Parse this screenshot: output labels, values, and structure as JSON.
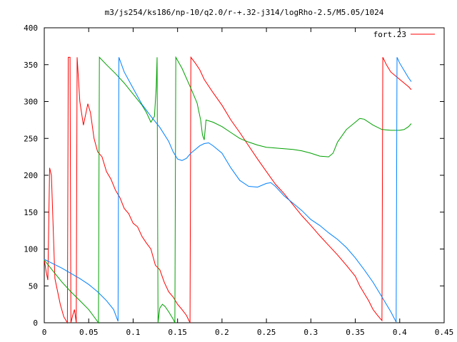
{
  "chart_data": {
    "type": "line",
    "title": "m3/js254/ks186/np-10/q2.0/r-+.32-j314/logRho-2.5/M5.05/1024",
    "xlabel": "",
    "ylabel": "",
    "xlim": [
      0,
      0.45
    ],
    "ylim": [
      0,
      400
    ],
    "xticks": [
      "0",
      "0.05",
      "0.1",
      "0.15",
      "0.2",
      "0.25",
      "0.3",
      "0.35",
      "0.4",
      "0.45"
    ],
    "yticks": [
      "0",
      "50",
      "100",
      "150",
      "200",
      "250",
      "300",
      "350",
      "400"
    ],
    "grid": false,
    "legend_position": "top-right",
    "legend": {
      "label": "fort.23",
      "color": "#ff0000"
    },
    "colors": {
      "red": "#ff0000",
      "green": "#00a000",
      "blue": "#0080ff"
    },
    "series": [
      {
        "color": "#ff0000",
        "points": [
          [
            0,
            86
          ],
          [
            0.002,
            70
          ],
          [
            0.004,
            58
          ],
          [
            0.006,
            210
          ],
          [
            0.008,
            200
          ],
          [
            0.012,
            60
          ],
          [
            0.018,
            25
          ],
          [
            0.022,
            8
          ],
          [
            0.026,
            0
          ],
          [
            0.027,
            360
          ],
          [
            0.029,
            360
          ],
          [
            0.03,
            0
          ],
          [
            0.032,
            10
          ],
          [
            0.034,
            18
          ],
          [
            0.036,
            0
          ],
          [
            0.037,
            360
          ],
          [
            0.04,
            300
          ],
          [
            0.044,
            268
          ],
          [
            0.047,
            285
          ],
          [
            0.049,
            297
          ],
          [
            0.052,
            285
          ],
          [
            0.056,
            250
          ],
          [
            0.06,
            232
          ],
          [
            0.065,
            225
          ],
          [
            0.07,
            205
          ],
          [
            0.075,
            195
          ],
          [
            0.08,
            180
          ],
          [
            0.085,
            170
          ],
          [
            0.09,
            155
          ],
          [
            0.095,
            148
          ],
          [
            0.1,
            135
          ],
          [
            0.105,
            130
          ],
          [
            0.11,
            117
          ],
          [
            0.115,
            108
          ],
          [
            0.12,
            100
          ],
          [
            0.125,
            78
          ],
          [
            0.13,
            72
          ],
          [
            0.135,
            55
          ],
          [
            0.14,
            42
          ],
          [
            0.145,
            35
          ],
          [
            0.15,
            25
          ],
          [
            0.155,
            18
          ],
          [
            0.16,
            10
          ],
          [
            0.164,
            0
          ],
          [
            0.165,
            360
          ],
          [
            0.17,
            352
          ],
          [
            0.175,
            343
          ],
          [
            0.18,
            330
          ],
          [
            0.19,
            312
          ],
          [
            0.2,
            295
          ],
          [
            0.21,
            275
          ],
          [
            0.22,
            258
          ],
          [
            0.23,
            240
          ],
          [
            0.24,
            222
          ],
          [
            0.25,
            205
          ],
          [
            0.26,
            188
          ],
          [
            0.27,
            175
          ],
          [
            0.28,
            160
          ],
          [
            0.29,
            145
          ],
          [
            0.3,
            132
          ],
          [
            0.31,
            118
          ],
          [
            0.32,
            105
          ],
          [
            0.33,
            92
          ],
          [
            0.34,
            78
          ],
          [
            0.35,
            63
          ],
          [
            0.355,
            50
          ],
          [
            0.36,
            40
          ],
          [
            0.365,
            30
          ],
          [
            0.37,
            18
          ],
          [
            0.375,
            10
          ],
          [
            0.38,
            3
          ],
          [
            0.381,
            360
          ],
          [
            0.385,
            350
          ],
          [
            0.39,
            340
          ],
          [
            0.395,
            335
          ],
          [
            0.4,
            330
          ],
          [
            0.405,
            325
          ],
          [
            0.41,
            320
          ],
          [
            0.413,
            316
          ]
        ]
      },
      {
        "color": "#00a000",
        "points": [
          [
            0,
            85
          ],
          [
            0.01,
            70
          ],
          [
            0.02,
            55
          ],
          [
            0.03,
            42
          ],
          [
            0.04,
            30
          ],
          [
            0.05,
            18
          ],
          [
            0.061,
            0
          ],
          [
            0.062,
            360
          ],
          [
            0.07,
            350
          ],
          [
            0.08,
            338
          ],
          [
            0.09,
            325
          ],
          [
            0.1,
            310
          ],
          [
            0.11,
            295
          ],
          [
            0.115,
            285
          ],
          [
            0.12,
            272
          ],
          [
            0.124,
            280
          ],
          [
            0.126,
            320
          ],
          [
            0.127,
            360
          ],
          [
            0.128,
            0
          ],
          [
            0.13,
            20
          ],
          [
            0.133,
            25
          ],
          [
            0.136,
            22
          ],
          [
            0.14,
            15
          ],
          [
            0.145,
            5
          ],
          [
            0.147,
            0
          ],
          [
            0.148,
            360
          ],
          [
            0.155,
            345
          ],
          [
            0.165,
            318
          ],
          [
            0.172,
            298
          ],
          [
            0.176,
            275
          ],
          [
            0.178,
            255
          ],
          [
            0.18,
            248
          ],
          [
            0.182,
            275
          ],
          [
            0.19,
            272
          ],
          [
            0.2,
            266
          ],
          [
            0.21,
            258
          ],
          [
            0.22,
            250
          ],
          [
            0.23,
            245
          ],
          [
            0.24,
            241
          ],
          [
            0.25,
            238
          ],
          [
            0.26,
            237
          ],
          [
            0.27,
            236
          ],
          [
            0.28,
            235
          ],
          [
            0.29,
            233
          ],
          [
            0.3,
            230
          ],
          [
            0.31,
            226
          ],
          [
            0.32,
            225
          ],
          [
            0.325,
            230
          ],
          [
            0.33,
            245
          ],
          [
            0.34,
            262
          ],
          [
            0.35,
            272
          ],
          [
            0.355,
            277
          ],
          [
            0.36,
            276
          ],
          [
            0.37,
            268
          ],
          [
            0.38,
            262
          ],
          [
            0.39,
            261
          ],
          [
            0.4,
            261
          ],
          [
            0.405,
            262
          ],
          [
            0.41,
            266
          ],
          [
            0.413,
            270
          ]
        ]
      },
      {
        "color": "#0080ff",
        "points": [
          [
            0,
            86
          ],
          [
            0.01,
            80
          ],
          [
            0.02,
            74
          ],
          [
            0.03,
            67
          ],
          [
            0.04,
            60
          ],
          [
            0.05,
            52
          ],
          [
            0.06,
            42
          ],
          [
            0.07,
            30
          ],
          [
            0.078,
            18
          ],
          [
            0.083,
            2
          ],
          [
            0.084,
            360
          ],
          [
            0.09,
            340
          ],
          [
            0.1,
            318
          ],
          [
            0.11,
            296
          ],
          [
            0.12,
            280
          ],
          [
            0.13,
            265
          ],
          [
            0.14,
            246
          ],
          [
            0.145,
            232
          ],
          [
            0.15,
            222
          ],
          [
            0.155,
            220
          ],
          [
            0.16,
            223
          ],
          [
            0.165,
            230
          ],
          [
            0.17,
            235
          ],
          [
            0.175,
            240
          ],
          [
            0.18,
            243
          ],
          [
            0.185,
            244
          ],
          [
            0.19,
            240
          ],
          [
            0.2,
            230
          ],
          [
            0.21,
            210
          ],
          [
            0.22,
            193
          ],
          [
            0.23,
            185
          ],
          [
            0.24,
            184
          ],
          [
            0.25,
            189
          ],
          [
            0.255,
            190
          ],
          [
            0.26,
            185
          ],
          [
            0.27,
            172
          ],
          [
            0.28,
            162
          ],
          [
            0.29,
            152
          ],
          [
            0.3,
            140
          ],
          [
            0.31,
            132
          ],
          [
            0.32,
            122
          ],
          [
            0.33,
            113
          ],
          [
            0.34,
            102
          ],
          [
            0.35,
            88
          ],
          [
            0.36,
            72
          ],
          [
            0.37,
            55
          ],
          [
            0.38,
            35
          ],
          [
            0.39,
            15
          ],
          [
            0.396,
            1
          ],
          [
            0.397,
            360
          ],
          [
            0.4,
            352
          ],
          [
            0.405,
            342
          ],
          [
            0.41,
            332
          ],
          [
            0.413,
            327
          ]
        ]
      }
    ]
  }
}
